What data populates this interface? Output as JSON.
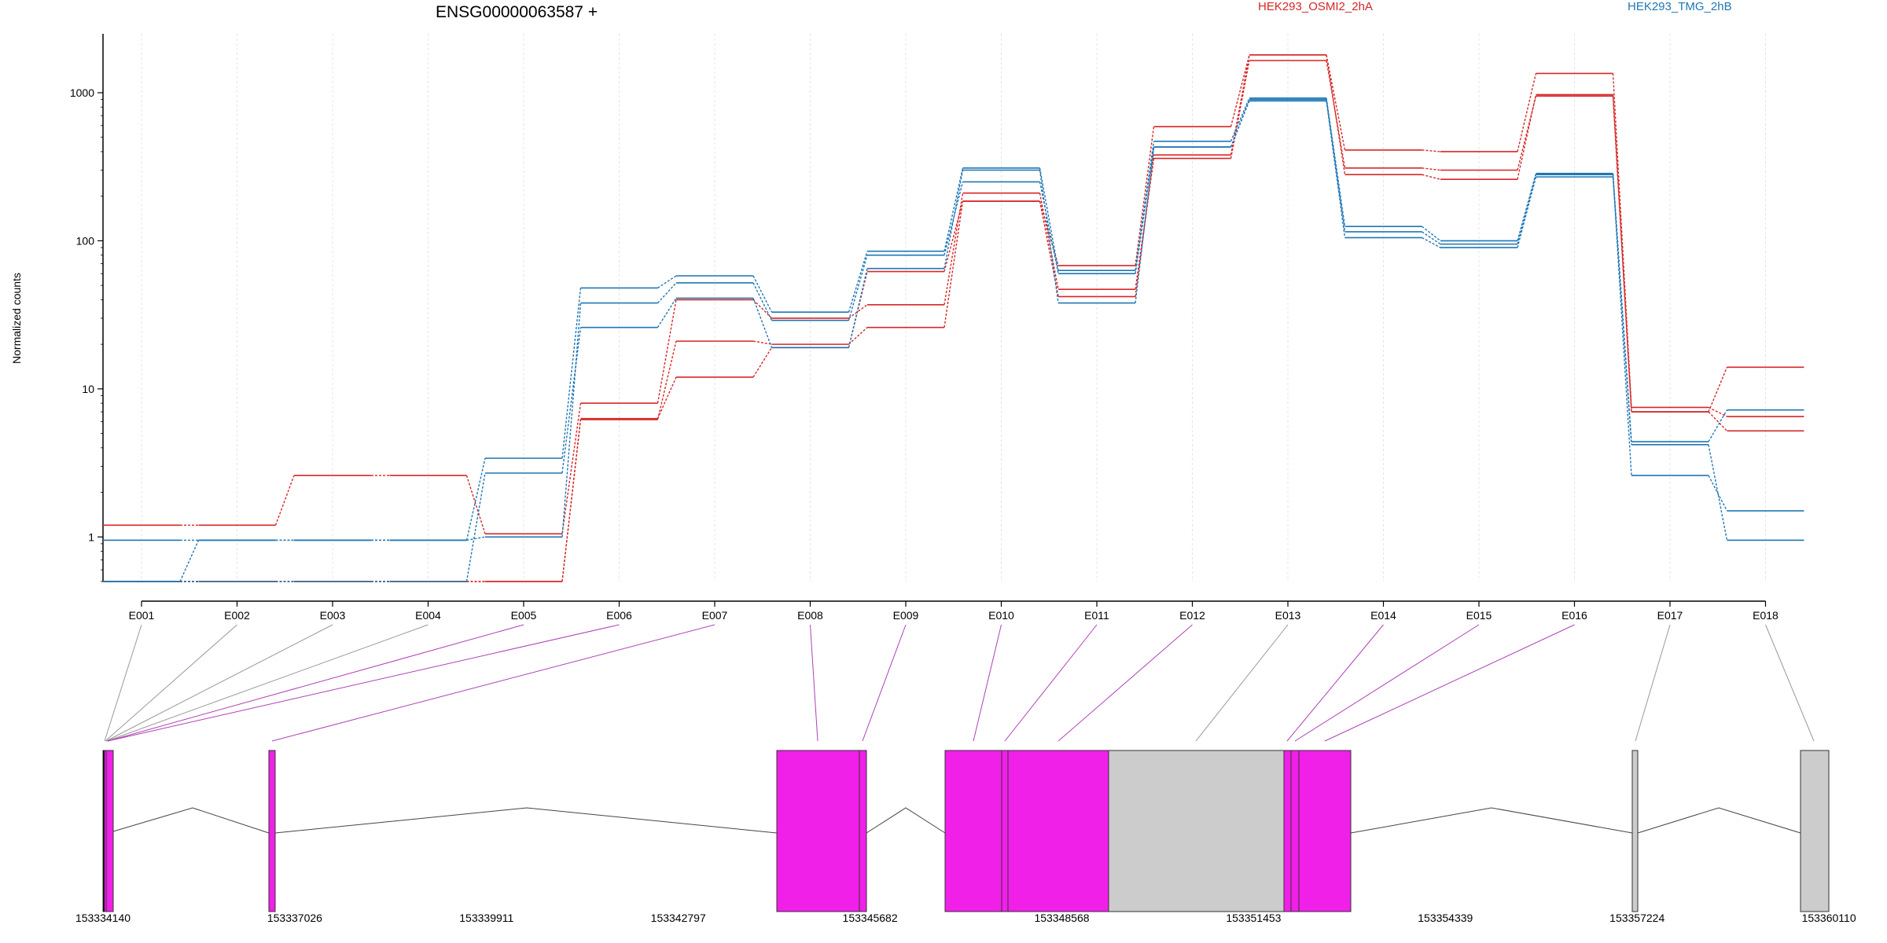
{
  "chart_data": {
    "type": "line",
    "title": "ENSG00000063587 +",
    "ylabel": "Normalized counts",
    "xlabel": "",
    "yscale": "log",
    "ylim": [
      0.5,
      2500
    ],
    "yticks": [
      {
        "value": 1,
        "label": "1"
      },
      {
        "value": 10,
        "label": "10"
      },
      {
        "value": 100,
        "label": "100"
      },
      {
        "value": 1000,
        "label": "1000"
      }
    ],
    "categories": [
      "E001",
      "E002",
      "E003",
      "E004",
      "E005",
      "E006",
      "E007",
      "E008",
      "E009",
      "E010",
      "E011",
      "E012",
      "E013",
      "E014",
      "E015",
      "E016",
      "E017",
      "E018"
    ],
    "grid": "vertical dotted",
    "legend_placement": "top",
    "legend": [
      {
        "label": "HEK293_OSMI2_2hA",
        "color": "#d62728"
      },
      {
        "label": "HEK293_TMG_2hB",
        "color": "#1f77b4"
      }
    ],
    "series": [
      {
        "group": "HEK293_OSMI2_2hA",
        "color": "#d62728",
        "values": [
          1.2,
          1.2,
          2.6,
          2.6,
          1.05,
          8.0,
          40,
          30,
          37,
          210,
          47,
          360,
          1650,
          310,
          300,
          950,
          7.0,
          14
        ]
      },
      {
        "group": "HEK293_OSMI2_2hA",
        "color": "#d62728",
        "values": [
          0.5,
          0.5,
          0.5,
          0.5,
          0.5,
          6.2,
          21,
          20,
          26,
          185,
          68,
          590,
          1800,
          410,
          400,
          1350,
          7.5,
          6.5
        ]
      },
      {
        "group": "HEK293_OSMI2_2hA",
        "color": "#d62728",
        "values": [
          0.5,
          0.5,
          0.5,
          0.5,
          0.5,
          6.3,
          12,
          19,
          62,
          185,
          42,
          380,
          1800,
          280,
          260,
          970,
          7.0,
          5.2
        ]
      },
      {
        "group": "HEK293_TMG_2hB",
        "color": "#1f77b4",
        "values": [
          0.95,
          0.95,
          0.95,
          0.95,
          3.4,
          48,
          58,
          33,
          85,
          310,
          63,
          470,
          920,
          125,
          100,
          285,
          4.4,
          7.2
        ]
      },
      {
        "group": "HEK293_TMG_2hB",
        "color": "#1f77b4",
        "values": [
          0.5,
          0.5,
          0.5,
          0.5,
          2.7,
          26,
          41,
          19,
          65,
          300,
          38,
          430,
          900,
          115,
          95,
          280,
          2.6,
          1.5
        ]
      },
      {
        "group": "HEK293_TMG_2hB",
        "color": "#1f77b4",
        "values": [
          0.5,
          0.95,
          0.95,
          0.95,
          1.0,
          38,
          52,
          29,
          80,
          250,
          60,
          430,
          880,
          105,
          90,
          270,
          4.2,
          0.95
        ]
      }
    ],
    "gene_model": {
      "coordinate_ticks": [
        "153334140",
        "153337026",
        "153339911",
        "153342797",
        "153345682",
        "153348568",
        "153351453",
        "153354339",
        "153357224",
        "153360110"
      ],
      "exon_colors": {
        "tested": "#f020e8",
        "untested": "#cccccc",
        "connector_tested": "#b040b8",
        "connector_untested": "#999999"
      }
    }
  }
}
